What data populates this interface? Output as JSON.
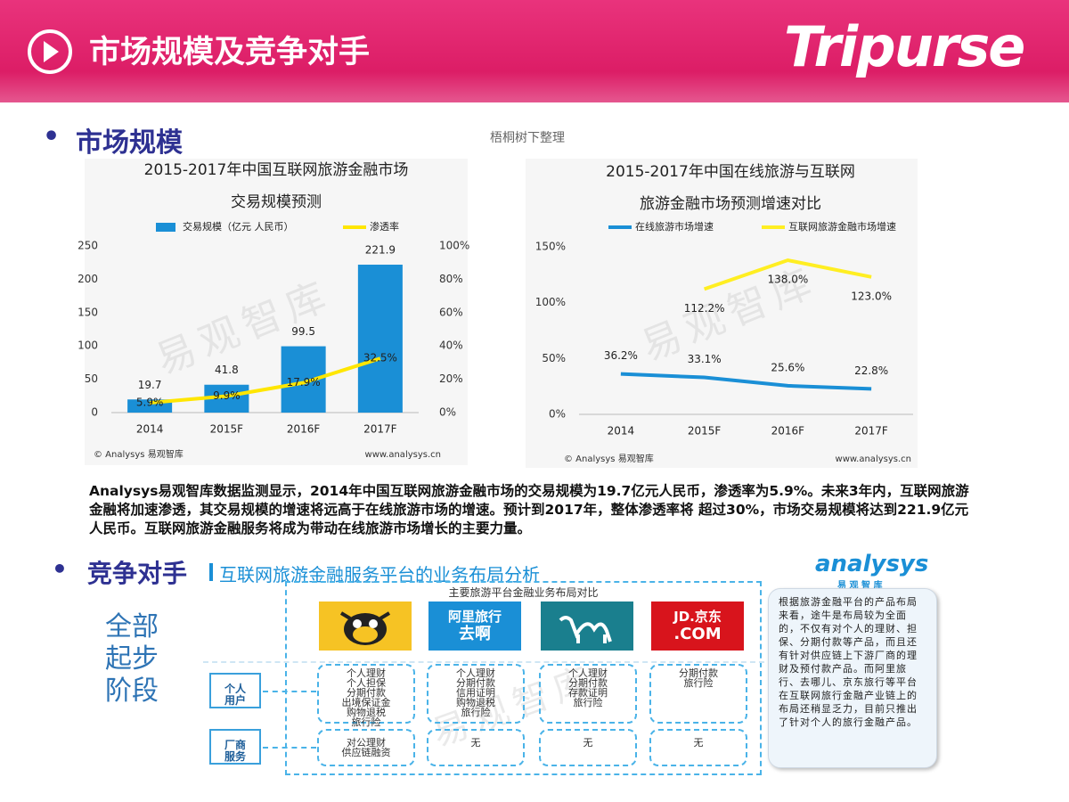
{
  "header": {
    "title": "市场规模及竞争对手",
    "brand": "Tripurse"
  },
  "section1": {
    "heading": "市场规模",
    "note": "梧桐树下整理"
  },
  "watermark": "易观智库",
  "chart_data": [
    {
      "type": "bar",
      "title_lines": [
        "2015-2017年中国互联网旅游金融市场",
        "交易规模预测"
      ],
      "categories": [
        "2014",
        "2015F",
        "2016F",
        "2017F"
      ],
      "series": [
        {
          "name": "交易规模（亿元 人民币）",
          "color": "#1a8fd6",
          "values": [
            19.7,
            41.8,
            99.5,
            221.9
          ]
        },
        {
          "name": "渗透率",
          "color": "#ffe600",
          "axis": "y2",
          "values": [
            5.9,
            9.9,
            17.9,
            32.5
          ],
          "value_labels": [
            "5.9%",
            "9.9%",
            "17.9%",
            "32.5%"
          ]
        }
      ],
      "ylim": [
        0,
        250
      ],
      "yticks": [
        0,
        50,
        100,
        150,
        200,
        250
      ],
      "y2lim": [
        0,
        100
      ],
      "y2ticks": [
        {
          "value": 0,
          "label": "0%"
        },
        {
          "value": 20,
          "label": "20%"
        },
        {
          "value": 40,
          "label": "40%"
        },
        {
          "value": 60,
          "label": "60%"
        },
        {
          "value": 80,
          "label": "80%"
        },
        {
          "value": 100,
          "label": "100%"
        }
      ],
      "source": "© Analysys 易观智库",
      "site": "www.analysys.cn"
    },
    {
      "type": "line",
      "title_lines": [
        "2015-2017年中国在线旅游与互联网",
        "旅游金融市场预测增速对比"
      ],
      "categories": [
        "2014",
        "2015F",
        "2016F",
        "2017F"
      ],
      "series": [
        {
          "name": "在线旅游市场增速",
          "color": "#1a8fd6",
          "values": [
            36.2,
            33.1,
            25.6,
            22.8
          ],
          "value_labels": [
            "36.2%",
            "33.1%",
            "25.6%",
            "22.8%"
          ]
        },
        {
          "name": "互联网旅游金融市场增速",
          "color": "#ffee22",
          "values": [
            null,
            112.2,
            138.0,
            123.0
          ],
          "value_labels": [
            null,
            "112.2%",
            "138.0%",
            "123.0%"
          ]
        }
      ],
      "ylim": [
        0,
        150
      ],
      "yticks": [
        {
          "value": 0,
          "label": "0%"
        },
        {
          "value": 50,
          "label": "50%"
        },
        {
          "value": 100,
          "label": "100%"
        },
        {
          "value": 150,
          "label": "150%"
        }
      ],
      "source": "© Analysys 易观智库",
      "site": "www.analysys.cn"
    }
  ],
  "summary": "Analysys易观智库数据监测显示，2014年中国互联网旅游金融市场的交易规模为19.7亿元人民币，渗透率为5.9%。未来3年内，互联网旅游金融将加速渗透，其交易规模的增速将远高于在线旅游市场的增速。预计到2017年，整体渗透率将 超过30%，市场交易规模将达到221.9亿元人民币。互联网旅游金融服务将成为带动在线旅游市场增长的主要力量。",
  "section2": {
    "heading": "竞争对手",
    "subtitle": "互联网旅游金融服务平台的业务布局分析",
    "logo": "analysys",
    "logo_sub": "易 观 智 库",
    "stage": [
      "全部",
      "起步",
      "阶段"
    ]
  },
  "diagram": {
    "title": "主要旅游平台金融业务布局对比",
    "rows": [
      "个人用户",
      "厂商服务"
    ],
    "platforms": [
      {
        "logo": [],
        "personal": [
          "个人理财",
          "个人担保",
          "分期付款",
          "出境保证金",
          "购物退税",
          "旅行险"
        ],
        "business": [
          "对公理财",
          "供应链融资"
        ]
      },
      {
        "logo": [
          "阿里旅行",
          "去啊"
        ],
        "personal": [
          "个人理财",
          "分期付款",
          "信用证明",
          "购物退税",
          "旅行险"
        ],
        "business": [
          "无"
        ]
      },
      {
        "logo": [],
        "personal": [
          "个人理财",
          "分期付款",
          "存款证明",
          "旅行险"
        ],
        "business": [
          "无"
        ]
      },
      {
        "logo": [
          "JD.京东",
          ".COM"
        ],
        "personal": [
          "分期付款",
          "旅行险"
        ],
        "business": [
          "无"
        ]
      }
    ]
  },
  "sidebar": "根据旅游金融平台的产品布局来看，途牛是布局较为全面的，不仅有对个人的理财、担保、分期付款等产品，而且还有针对供应链上下游厂商的理财及预付款产品。而阿里旅行、去哪儿、京东旅行等平台在互联网旅行金融产业链上的布局还稍显乏力，目前只推出了针对个人的旅行金融产品。"
}
